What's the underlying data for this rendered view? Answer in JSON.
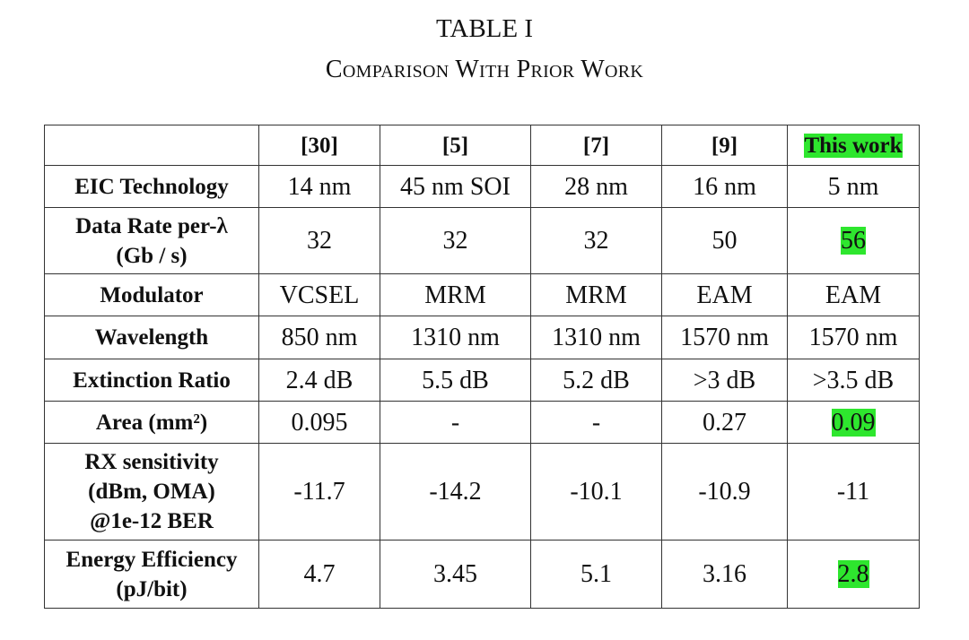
{
  "title": "TABLE I",
  "subtitle": "Comparison With Prior Work",
  "table": {
    "rows": [
      [
        null,
        "[30]",
        "[5]",
        "[7]",
        "[9]",
        "This work"
      ],
      [
        "EIC Technology",
        "14 nm",
        "45 nm SOI",
        "28 nm",
        "16 nm",
        "5 nm"
      ],
      [
        "Data Rate per-λ\n(Gb / s)",
        "32",
        "32",
        "32",
        "50",
        "56"
      ],
      [
        "Modulator",
        "VCSEL",
        "MRM",
        "MRM",
        "EAM",
        "EAM"
      ],
      [
        "Wavelength",
        "850 nm",
        "1310 nm",
        "1310 nm",
        "1570 nm",
        "1570 nm"
      ],
      [
        "Extinction Ratio",
        "2.4 dB",
        "5.5 dB",
        "5.2 dB",
        ">3 dB",
        ">3.5 dB"
      ],
      [
        "Area (mm²)",
        "0.095",
        "-",
        "-",
        "0.27",
        "0.09"
      ],
      [
        "RX sensitivity\n(dBm, OMA)\n@1e-12 BER",
        "-11.7",
        "-14.2",
        "-10.1",
        "-10.9",
        "-11"
      ],
      [
        "Energy Efficiency\n(pJ/bit)",
        "4.7",
        "3.45",
        "5.1",
        "3.16",
        "2.8"
      ]
    ],
    "highlight_color": "#2ee62e",
    "highlight_cells": [
      [
        0,
        5
      ],
      [
        2,
        5
      ],
      [
        6,
        5
      ],
      [
        8,
        5
      ]
    ]
  }
}
